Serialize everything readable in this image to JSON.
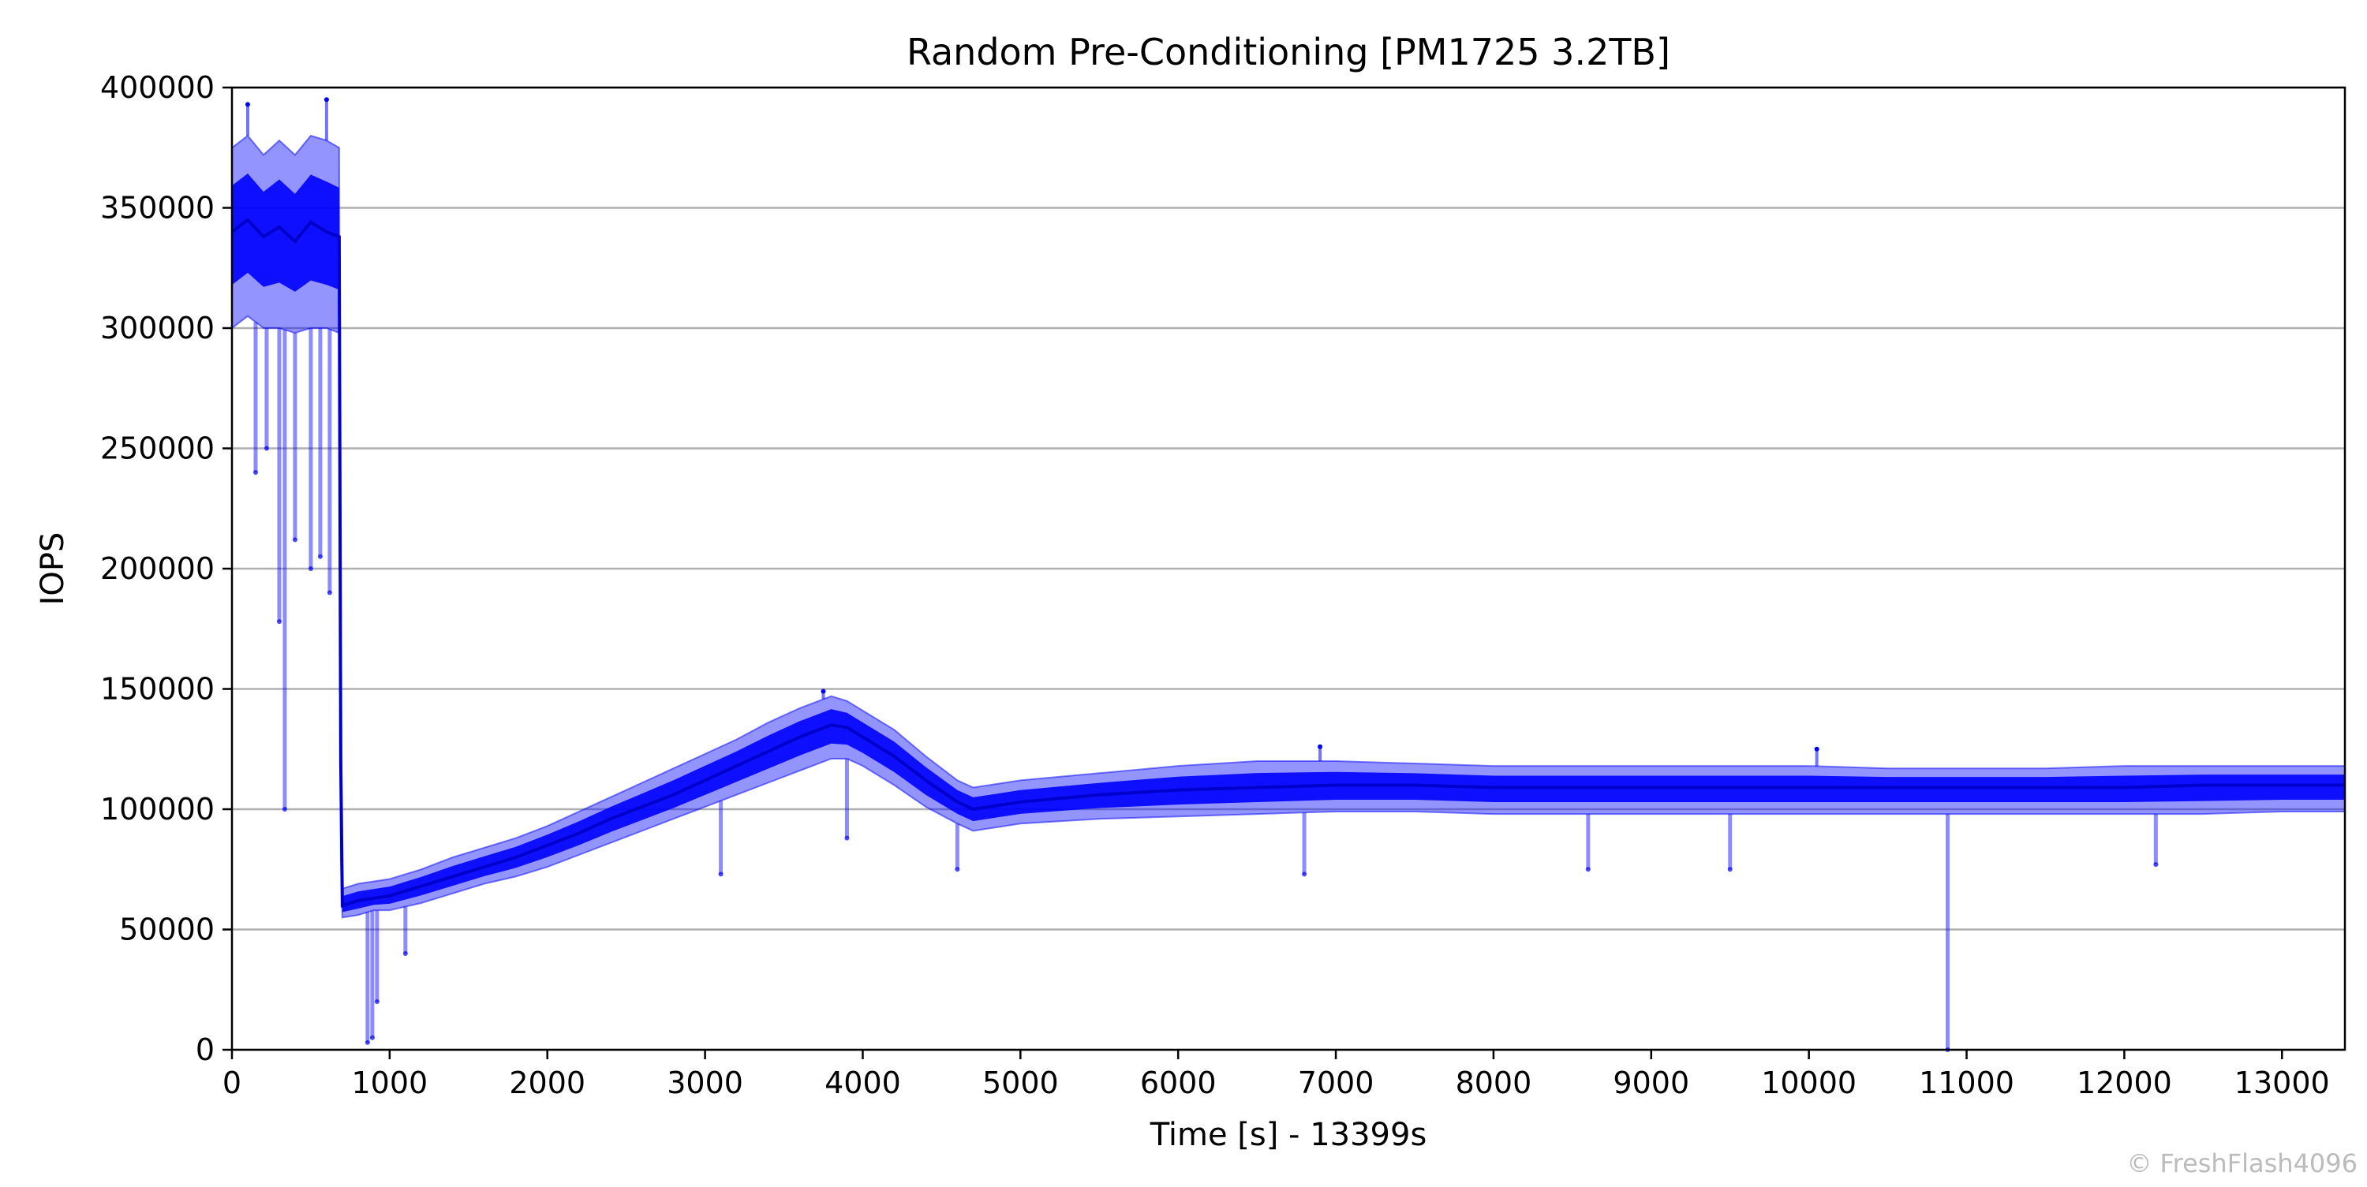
{
  "chart_data": {
    "type": "line",
    "title": "Random Pre-Conditioning [PM1725 3.2TB]",
    "xlabel": "Time [s] - 13399s",
    "ylabel": "IOPS",
    "xlim": [
      0,
      13399
    ],
    "ylim": [
      0,
      400000
    ],
    "x_ticks": [
      0,
      1000,
      2000,
      3000,
      4000,
      5000,
      6000,
      7000,
      8000,
      9000,
      10000,
      11000,
      12000,
      13000
    ],
    "x_tick_labels": [
      "0",
      "1000",
      "2000",
      "3000",
      "4000",
      "5000",
      "6000",
      "7000",
      "8000",
      "9000",
      "10000",
      "11000",
      "12000",
      "13000"
    ],
    "y_ticks": [
      0,
      50000,
      100000,
      150000,
      200000,
      250000,
      300000,
      350000,
      400000
    ],
    "y_tick_labels": [
      "0",
      "50000",
      "100000",
      "150000",
      "200000",
      "250000",
      "300000",
      "350000",
      "400000"
    ],
    "grid": "horizontal",
    "series_color": "#0000ff",
    "series": [
      {
        "x": [
          0,
          100,
          200,
          300,
          400,
          500,
          600,
          680,
          690,
          700,
          800,
          900,
          1000,
          1200,
          1400,
          1600,
          1800,
          2000,
          2200,
          2400,
          2600,
          2800,
          3000,
          3200,
          3400,
          3600,
          3800,
          3900,
          4000,
          4200,
          4400,
          4600,
          4700,
          4800,
          5000,
          5500,
          6000,
          6500,
          7000,
          7500,
          8000,
          8500,
          9000,
          9500,
          10000,
          10500,
          11000,
          11500,
          12000,
          12500,
          13000,
          13399
        ],
        "y": [
          340000,
          345000,
          338000,
          342000,
          336000,
          344000,
          340000,
          338000,
          120000,
          60000,
          62000,
          63000,
          64000,
          68000,
          72000,
          76000,
          80000,
          85000,
          90000,
          96000,
          101000,
          106000,
          112000,
          118000,
          124000,
          130000,
          135000,
          134000,
          130000,
          122000,
          112000,
          103000,
          100000,
          101000,
          103000,
          106000,
          108000,
          109000,
          110000,
          110000,
          109000,
          109000,
          109000,
          109000,
          109000,
          109000,
          109000,
          109000,
          109000,
          110000,
          110000,
          110000
        ],
        "band_low": [
          300000,
          305000,
          300000,
          300000,
          298000,
          300000,
          300000,
          298000,
          80000,
          55000,
          56000,
          58000,
          58000,
          61000,
          65000,
          69000,
          72000,
          76000,
          81000,
          86000,
          91000,
          96000,
          101000,
          106000,
          111000,
          116000,
          121000,
          121000,
          118000,
          110000,
          101000,
          94000,
          91000,
          92000,
          94000,
          96000,
          97000,
          98000,
          99000,
          99000,
          98000,
          98000,
          98000,
          98000,
          98000,
          98000,
          98000,
          98000,
          98000,
          98000,
          99000,
          99000
        ],
        "band_high": [
          375000,
          380000,
          372000,
          378000,
          372000,
          380000,
          378000,
          375000,
          150000,
          67000,
          69000,
          70000,
          71000,
          75000,
          80000,
          84000,
          88000,
          93000,
          99000,
          105000,
          111000,
          117000,
          123000,
          129000,
          136000,
          142000,
          147000,
          145000,
          141000,
          133000,
          122000,
          112000,
          109000,
          110000,
          112000,
          115000,
          118000,
          120000,
          120000,
          119000,
          118000,
          118000,
          118000,
          118000,
          118000,
          117000,
          117000,
          117000,
          118000,
          118000,
          118000,
          118000
        ]
      }
    ],
    "dips": [
      {
        "x": 150,
        "y": 240000
      },
      {
        "x": 220,
        "y": 250000
      },
      {
        "x": 300,
        "y": 178000
      },
      {
        "x": 335,
        "y": 100000
      },
      {
        "x": 400,
        "y": 212000
      },
      {
        "x": 500,
        "y": 200000
      },
      {
        "x": 560,
        "y": 205000
      },
      {
        "x": 620,
        "y": 190000
      },
      {
        "x": 860,
        "y": 3000
      },
      {
        "x": 890,
        "y": 5000
      },
      {
        "x": 920,
        "y": 20000
      },
      {
        "x": 1100,
        "y": 40000
      },
      {
        "x": 3100,
        "y": 73000
      },
      {
        "x": 3900,
        "y": 88000
      },
      {
        "x": 4600,
        "y": 75000
      },
      {
        "x": 6800,
        "y": 73000
      },
      {
        "x": 8600,
        "y": 75000
      },
      {
        "x": 9500,
        "y": 75000
      },
      {
        "x": 10880,
        "y": 0
      },
      {
        "x": 12200,
        "y": 77000
      }
    ],
    "spikes": [
      {
        "x": 100,
        "y": 393000
      },
      {
        "x": 600,
        "y": 395000
      },
      {
        "x": 3750,
        "y": 149000
      },
      {
        "x": 6900,
        "y": 126000
      },
      {
        "x": 10050,
        "y": 125000
      }
    ]
  },
  "watermark": "© FreshFlash4096"
}
